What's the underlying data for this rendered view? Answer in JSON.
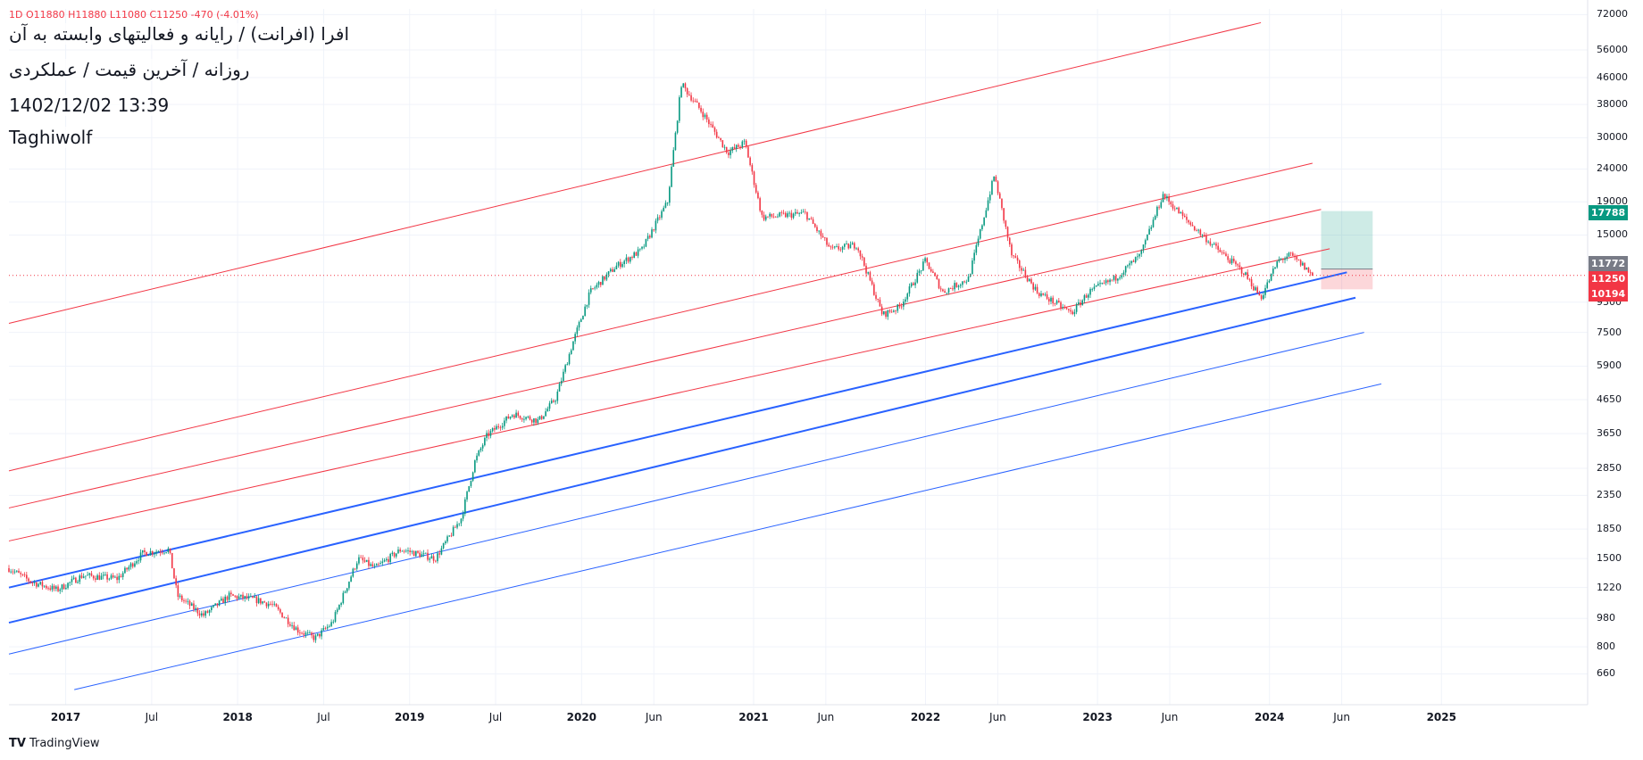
{
  "header": {
    "ohlc": "1D  O11880  H11880  L11080  C11250  -470 (-4.01%)",
    "symbol": "افرا (افرانت) / رایانه و فعالیتهای وابسته به آن",
    "subtitle": "روزانه / آخرین قیمت / عملکردی",
    "datetime": "1402/12/02 13:39",
    "author": "Taghiwolf"
  },
  "badges": [
    {
      "label": "17788",
      "color": "#089981"
    },
    {
      "label": "11772",
      "color": "#787b86"
    },
    {
      "label": "11250",
      "color": "#f23645"
    },
    {
      "label": "10194",
      "color": "#f23645"
    }
  ],
  "footer": {
    "brand": "TradingView",
    "logo": "TV"
  },
  "chart_data": {
    "type": "candlestick",
    "title": "افرا (افرانت) / رایانه و فعالیتهای وابسته به آن",
    "scale": "log",
    "ylim": [
      530,
      75000
    ],
    "y_ticks": [
      660,
      800,
      980,
      1220,
      1500,
      1850,
      2350,
      2850,
      3650,
      4650,
      5900,
      7500,
      9300,
      15000,
      19000,
      24000,
      30000,
      38000,
      46000,
      56000,
      72000
    ],
    "x_ticks": [
      {
        "label": "2017",
        "year": true,
        "t": 2017.0
      },
      {
        "label": "Jul",
        "year": false,
        "t": 2017.5
      },
      {
        "label": "2018",
        "year": true,
        "t": 2018.0
      },
      {
        "label": "Jul",
        "year": false,
        "t": 2018.5
      },
      {
        "label": "2019",
        "year": true,
        "t": 2019.0
      },
      {
        "label": "Jul",
        "year": false,
        "t": 2019.5
      },
      {
        "label": "2020",
        "year": true,
        "t": 2020.0
      },
      {
        "label": "Jun",
        "year": false,
        "t": 2020.42
      },
      {
        "label": "2021",
        "year": true,
        "t": 2021.0
      },
      {
        "label": "Jun",
        "year": false,
        "t": 2021.42
      },
      {
        "label": "2022",
        "year": true,
        "t": 2022.0
      },
      {
        "label": "Jun",
        "year": false,
        "t": 2022.42
      },
      {
        "label": "2023",
        "year": true,
        "t": 2023.0
      },
      {
        "label": "Jun",
        "year": false,
        "t": 2023.42
      },
      {
        "label": "2024",
        "year": true,
        "t": 2024.0
      },
      {
        "label": "Jun",
        "year": false,
        "t": 2024.42
      },
      {
        "label": "2025",
        "year": true,
        "t": 2025.0
      }
    ],
    "xlim": [
      2016.67,
      2025.85
    ],
    "last_price": 11250,
    "price_path": [
      [
        2016.67,
        1400
      ],
      [
        2016.8,
        1270
      ],
      [
        2016.95,
        1200
      ],
      [
        2017.1,
        1330
      ],
      [
        2017.3,
        1300
      ],
      [
        2017.45,
        1560
      ],
      [
        2017.6,
        1600
      ],
      [
        2017.65,
        1150
      ],
      [
        2017.8,
        1000
      ],
      [
        2017.95,
        1150
      ],
      [
        2018.1,
        1120
      ],
      [
        2018.2,
        1080
      ],
      [
        2018.35,
        900
      ],
      [
        2018.45,
        850
      ],
      [
        2018.55,
        950
      ],
      [
        2018.7,
        1500
      ],
      [
        2018.8,
        1400
      ],
      [
        2018.95,
        1600
      ],
      [
        2019.15,
        1500
      ],
      [
        2019.3,
        2000
      ],
      [
        2019.38,
        3000
      ],
      [
        2019.45,
        3600
      ],
      [
        2019.6,
        4200
      ],
      [
        2019.75,
        4000
      ],
      [
        2019.85,
        4700
      ],
      [
        2019.95,
        7000
      ],
      [
        2020.05,
        10000
      ],
      [
        2020.2,
        12000
      ],
      [
        2020.35,
        13500
      ],
      [
        2020.5,
        19000
      ],
      [
        2020.58,
        44000
      ],
      [
        2020.7,
        36000
      ],
      [
        2020.85,
        27000
      ],
      [
        2020.95,
        29000
      ],
      [
        2021.05,
        17000
      ],
      [
        2021.3,
        17500
      ],
      [
        2021.45,
        13500
      ],
      [
        2021.6,
        14000
      ],
      [
        2021.75,
        8500
      ],
      [
        2021.85,
        9000
      ],
      [
        2022.0,
        12500
      ],
      [
        2022.1,
        10000
      ],
      [
        2022.25,
        11000
      ],
      [
        2022.4,
        23000
      ],
      [
        2022.5,
        13000
      ],
      [
        2022.65,
        10000
      ],
      [
        2022.85,
        8600
      ],
      [
        2022.95,
        10000
      ],
      [
        2023.1,
        11000
      ],
      [
        2023.25,
        13000
      ],
      [
        2023.38,
        20000
      ],
      [
        2023.5,
        17000
      ],
      [
        2023.7,
        13500
      ],
      [
        2023.85,
        11500
      ],
      [
        2023.95,
        9600
      ],
      [
        2024.05,
        12500
      ],
      [
        2024.12,
        13000
      ],
      [
        2024.2,
        12000
      ],
      [
        2024.25,
        11250
      ]
    ],
    "channel_lines": [
      {
        "color": "#f23645",
        "width": 1,
        "start": [
          2016.67,
          8000
        ],
        "end": [
          2023.95,
          68000
        ]
      },
      {
        "color": "#f23645",
        "width": 1,
        "start": [
          2016.67,
          2800
        ],
        "end": [
          2024.25,
          25000
        ]
      },
      {
        "color": "#f23645",
        "width": 1,
        "start": [
          2016.67,
          2150
        ],
        "end": [
          2024.3,
          18000
        ]
      },
      {
        "color": "#f23645",
        "width": 1,
        "start": [
          2016.67,
          1700
        ],
        "end": [
          2024.35,
          13600
        ]
      },
      {
        "color": "#2962ff",
        "width": 2,
        "start": [
          2016.67,
          1220
        ],
        "end": [
          2024.45,
          11500
        ]
      },
      {
        "color": "#2962ff",
        "width": 2,
        "start": [
          2016.67,
          950
        ],
        "end": [
          2024.5,
          9600
        ]
      },
      {
        "color": "#2962ff",
        "width": 1,
        "start": [
          2016.67,
          760
        ],
        "end": [
          2024.55,
          7500
        ]
      },
      {
        "color": "#2962ff",
        "width": 1,
        "start": [
          2017.05,
          590
        ],
        "end": [
          2024.65,
          5200
        ]
      }
    ],
    "position_tool": {
      "t0": 2024.3,
      "t1": 2024.6,
      "target": 17788,
      "entry": 11772,
      "stop": 10194
    },
    "colors": {
      "up": "#089981",
      "down": "#f23645"
    }
  }
}
